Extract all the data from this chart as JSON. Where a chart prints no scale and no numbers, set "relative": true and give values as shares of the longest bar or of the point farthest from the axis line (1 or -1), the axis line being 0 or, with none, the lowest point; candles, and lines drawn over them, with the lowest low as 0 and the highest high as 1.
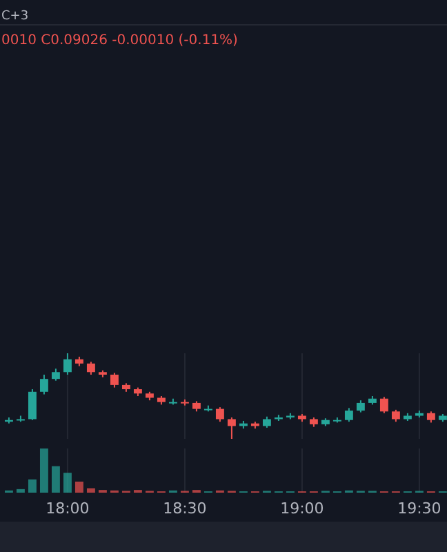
{
  "chart_data": [
    {
      "type": "candlestick",
      "relative": true,
      "annotations": [
        "C+3",
        "0010 C0.09026 -0.00010 (-0.11%)"
      ],
      "xlim": [
        17.712,
        19.618
      ],
      "xticks": [
        {
          "value": 18,
          "label": null
        },
        {
          "value": 18.5,
          "label": null
        },
        {
          "value": 19,
          "label": null
        },
        {
          "value": 19.5,
          "label": null
        }
      ],
      "tick_labels": false,
      "grid": "x",
      "x": [
        17.75,
        17.8,
        17.85,
        17.9,
        17.95,
        18,
        18.05,
        18.1,
        18.15,
        18.2,
        18.25,
        18.3,
        18.35,
        18.4,
        18.45,
        18.5,
        18.55,
        18.6,
        18.65,
        18.7,
        18.75,
        18.8,
        18.85,
        18.9,
        18.95,
        19,
        19.05,
        19.1,
        19.15,
        19.2,
        19.25,
        19.3,
        19.35,
        19.4,
        19.45,
        19.5,
        19.55,
        19.6
      ],
      "ohlc": [
        [
          0.2,
          0.25,
          0.18,
          0.22
        ],
        [
          0.22,
          0.27,
          0.2,
          0.23
        ],
        [
          0.23,
          0.58,
          0.22,
          0.55
        ],
        [
          0.55,
          0.75,
          0.52,
          0.7
        ],
        [
          0.7,
          0.82,
          0.68,
          0.78
        ],
        [
          0.78,
          1,
          0.75,
          0.93
        ],
        [
          0.93,
          0.96,
          0.85,
          0.88
        ],
        [
          0.88,
          0.9,
          0.75,
          0.78
        ],
        [
          0.78,
          0.8,
          0.72,
          0.75
        ],
        [
          0.75,
          0.77,
          0.6,
          0.63
        ],
        [
          0.63,
          0.65,
          0.55,
          0.58
        ],
        [
          0.58,
          0.6,
          0.5,
          0.53
        ],
        [
          0.53,
          0.55,
          0.45,
          0.48
        ],
        [
          0.48,
          0.5,
          0.4,
          0.43
        ],
        [
          0.43,
          0.47,
          0.4,
          0.43
        ],
        [
          0.43,
          0.46,
          0.39,
          0.42
        ],
        [
          0.42,
          0.44,
          0.32,
          0.35
        ],
        [
          0.35,
          0.39,
          0.32,
          0.35
        ],
        [
          0.35,
          0.37,
          0.2,
          0.23
        ],
        [
          0.23,
          0.25,
          0,
          0.15
        ],
        [
          0.15,
          0.21,
          0.12,
          0.18
        ],
        [
          0.18,
          0.2,
          0.12,
          0.15
        ],
        [
          0.15,
          0.26,
          0.13,
          0.23
        ],
        [
          0.23,
          0.28,
          0.21,
          0.25
        ],
        [
          0.25,
          0.3,
          0.23,
          0.27
        ],
        [
          0.27,
          0.29,
          0.2,
          0.23
        ],
        [
          0.23,
          0.25,
          0.14,
          0.17
        ],
        [
          0.17,
          0.24,
          0.15,
          0.22
        ],
        [
          0.22,
          0.25,
          0.19,
          0.22
        ],
        [
          0.22,
          0.36,
          0.2,
          0.33
        ],
        [
          0.33,
          0.45,
          0.31,
          0.42
        ],
        [
          0.42,
          0.5,
          0.4,
          0.47
        ],
        [
          0.47,
          0.49,
          0.3,
          0.32
        ],
        [
          0.32,
          0.34,
          0.2,
          0.23
        ],
        [
          0.23,
          0.3,
          0.21,
          0.27
        ],
        [
          0.27,
          0.33,
          0.25,
          0.3
        ],
        [
          0.3,
          0.32,
          0.19,
          0.22
        ],
        [
          0.22,
          0.29,
          0.2,
          0.27
        ]
      ]
    },
    {
      "type": "bar",
      "relative": true,
      "xlim": [
        17.712,
        19.618
      ],
      "xticks": [
        {
          "value": 18,
          "label": "18:00"
        },
        {
          "value": 18.5,
          "label": "18:30"
        },
        {
          "value": 19,
          "label": "19:00"
        },
        {
          "value": 19.5,
          "label": "19:30"
        }
      ],
      "tick_labels": "x",
      "grid": "x",
      "x": [
        17.75,
        17.8,
        17.85,
        17.9,
        17.95,
        18,
        18.05,
        18.1,
        18.15,
        18.2,
        18.25,
        18.3,
        18.35,
        18.4,
        18.45,
        18.5,
        18.55,
        18.6,
        18.65,
        18.7,
        18.75,
        18.8,
        18.85,
        18.9,
        18.95,
        19,
        19.05,
        19.1,
        19.15,
        19.2,
        19.25,
        19.3,
        19.35,
        19.4,
        19.45,
        19.5,
        19.55,
        19.6
      ],
      "values": [
        0.05,
        0.08,
        0.3,
        1,
        0.6,
        0.45,
        0.25,
        0.1,
        0.06,
        0.05,
        0.04,
        0.06,
        0.04,
        0.03,
        0.05,
        0.04,
        0.06,
        0.03,
        0.05,
        0.04,
        0.03,
        0.03,
        0.04,
        0.03,
        0.03,
        0.03,
        0.03,
        0.04,
        0.03,
        0.05,
        0.04,
        0.04,
        0.03,
        0.03,
        0.03,
        0.04,
        0.03,
        0.03
      ],
      "colors": [
        "#26a69a",
        "#26a69a",
        "#26a69a",
        "#26a69a",
        "#26a69a",
        "#26a69a",
        "#ef5350",
        "#ef5350",
        "#ef5350",
        "#ef5350",
        "#ef5350",
        "#ef5350",
        "#ef5350",
        "#ef5350",
        "#26a69a",
        "#ef5350",
        "#ef5350",
        "#26a69a",
        "#ef5350",
        "#ef5350",
        "#26a69a",
        "#ef5350",
        "#26a69a",
        "#26a69a",
        "#26a69a",
        "#ef5350",
        "#ef5350",
        "#26a69a",
        "#26a69a",
        "#26a69a",
        "#26a69a",
        "#26a69a",
        "#ef5350",
        "#ef5350",
        "#26a69a",
        "#26a69a",
        "#ef5350",
        "#26a69a"
      ]
    }
  ]
}
